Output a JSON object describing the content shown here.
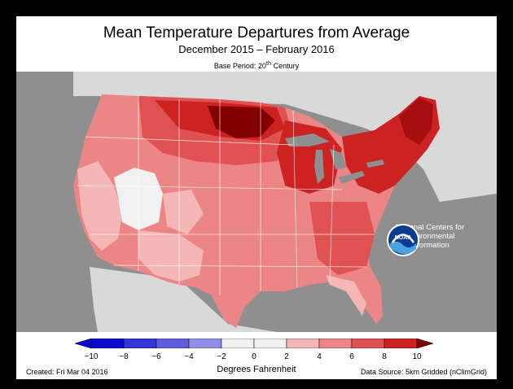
{
  "title": "Mean Temperature Departures from Average",
  "subtitle": "December 2015 – February 2016",
  "base_period": {
    "prefix": "Base Period: 20",
    "sup": "th",
    "suffix": " Century"
  },
  "logo": {
    "icon": "noaa-logo",
    "text": "NOAA",
    "org_line1": "National Centers for",
    "org_line2": "Environmental",
    "org_line3": "Information"
  },
  "legend": {
    "ticks": [
      "−10",
      "−8",
      "−6",
      "−4",
      "−2",
      "0",
      "2",
      "4",
      "6",
      "8",
      "10"
    ],
    "colors": [
      "#0b0bd0",
      "#3434d8",
      "#5d5ddf",
      "#8f8fea",
      "#f1f1f1",
      "#f1f1f1",
      "#f5b6b6",
      "#ec8686",
      "#e05252",
      "#cc2222",
      "#820000"
    ],
    "unit": "Degrees Fahrenheit"
  },
  "footer": {
    "created": "Created: Fri Mar 04 2016",
    "source": "Data Source: 5km Gridded (nClimGrid)"
  },
  "map": {
    "land_color": "#d9d9d9",
    "ocean_color": "#8f8f8f",
    "regions": [
      {
        "name": "west-coast",
        "anomaly": "2 to 4"
      },
      {
        "name": "great-basin",
        "anomaly": "-2 to 2"
      },
      {
        "name": "southwest",
        "anomaly": "2 to 4"
      },
      {
        "name": "northern-plains",
        "anomaly": "6 to 10"
      },
      {
        "name": "upper-midwest",
        "anomaly": "8 to 10+"
      },
      {
        "name": "northeast",
        "anomaly": "6 to 10"
      },
      {
        "name": "south",
        "anomaly": "2 to 6"
      },
      {
        "name": "southeast",
        "anomaly": "4 to 6"
      }
    ]
  }
}
